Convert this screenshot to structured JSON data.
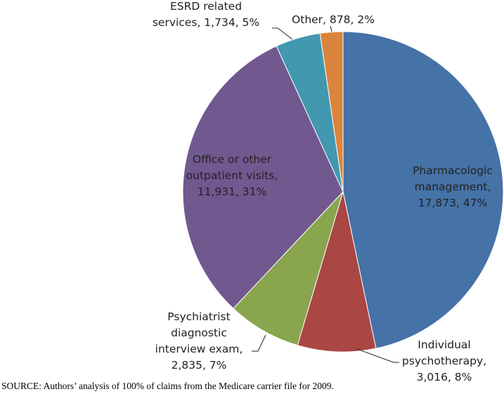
{
  "chart_data": {
    "type": "pie",
    "slices": [
      {
        "label_lines": [
          "Pharmacologic",
          "management,",
          "17,873, 47%"
        ],
        "value": 17873,
        "percent": 47,
        "color": "#4572A7"
      },
      {
        "label_lines": [
          "Individual",
          "psychotherapy,",
          "3,016, 8%"
        ],
        "value": 3016,
        "percent": 8,
        "color": "#AA4643"
      },
      {
        "label_lines": [
          "Psychiatrist",
          "diagnostic",
          "interview exam,",
          "2,835, 7%"
        ],
        "value": 2835,
        "percent": 7,
        "color": "#89A54E"
      },
      {
        "label_lines": [
          "Office or other",
          "outpatient visits,",
          "11,931, 31%"
        ],
        "value": 11931,
        "percent": 31,
        "color": "#71588F"
      },
      {
        "label_lines": [
          "ESRD related",
          "services, 1,734, 5%"
        ],
        "value": 1734,
        "percent": 5,
        "color": "#4198AF"
      },
      {
        "label_lines": [
          "Other, 878, 2%"
        ],
        "value": 878,
        "percent": 2,
        "color": "#DB843D"
      }
    ]
  },
  "source": "SOURCE:  Authors’ analysis of 100% of claims from the Medicare carrier file for 2009."
}
